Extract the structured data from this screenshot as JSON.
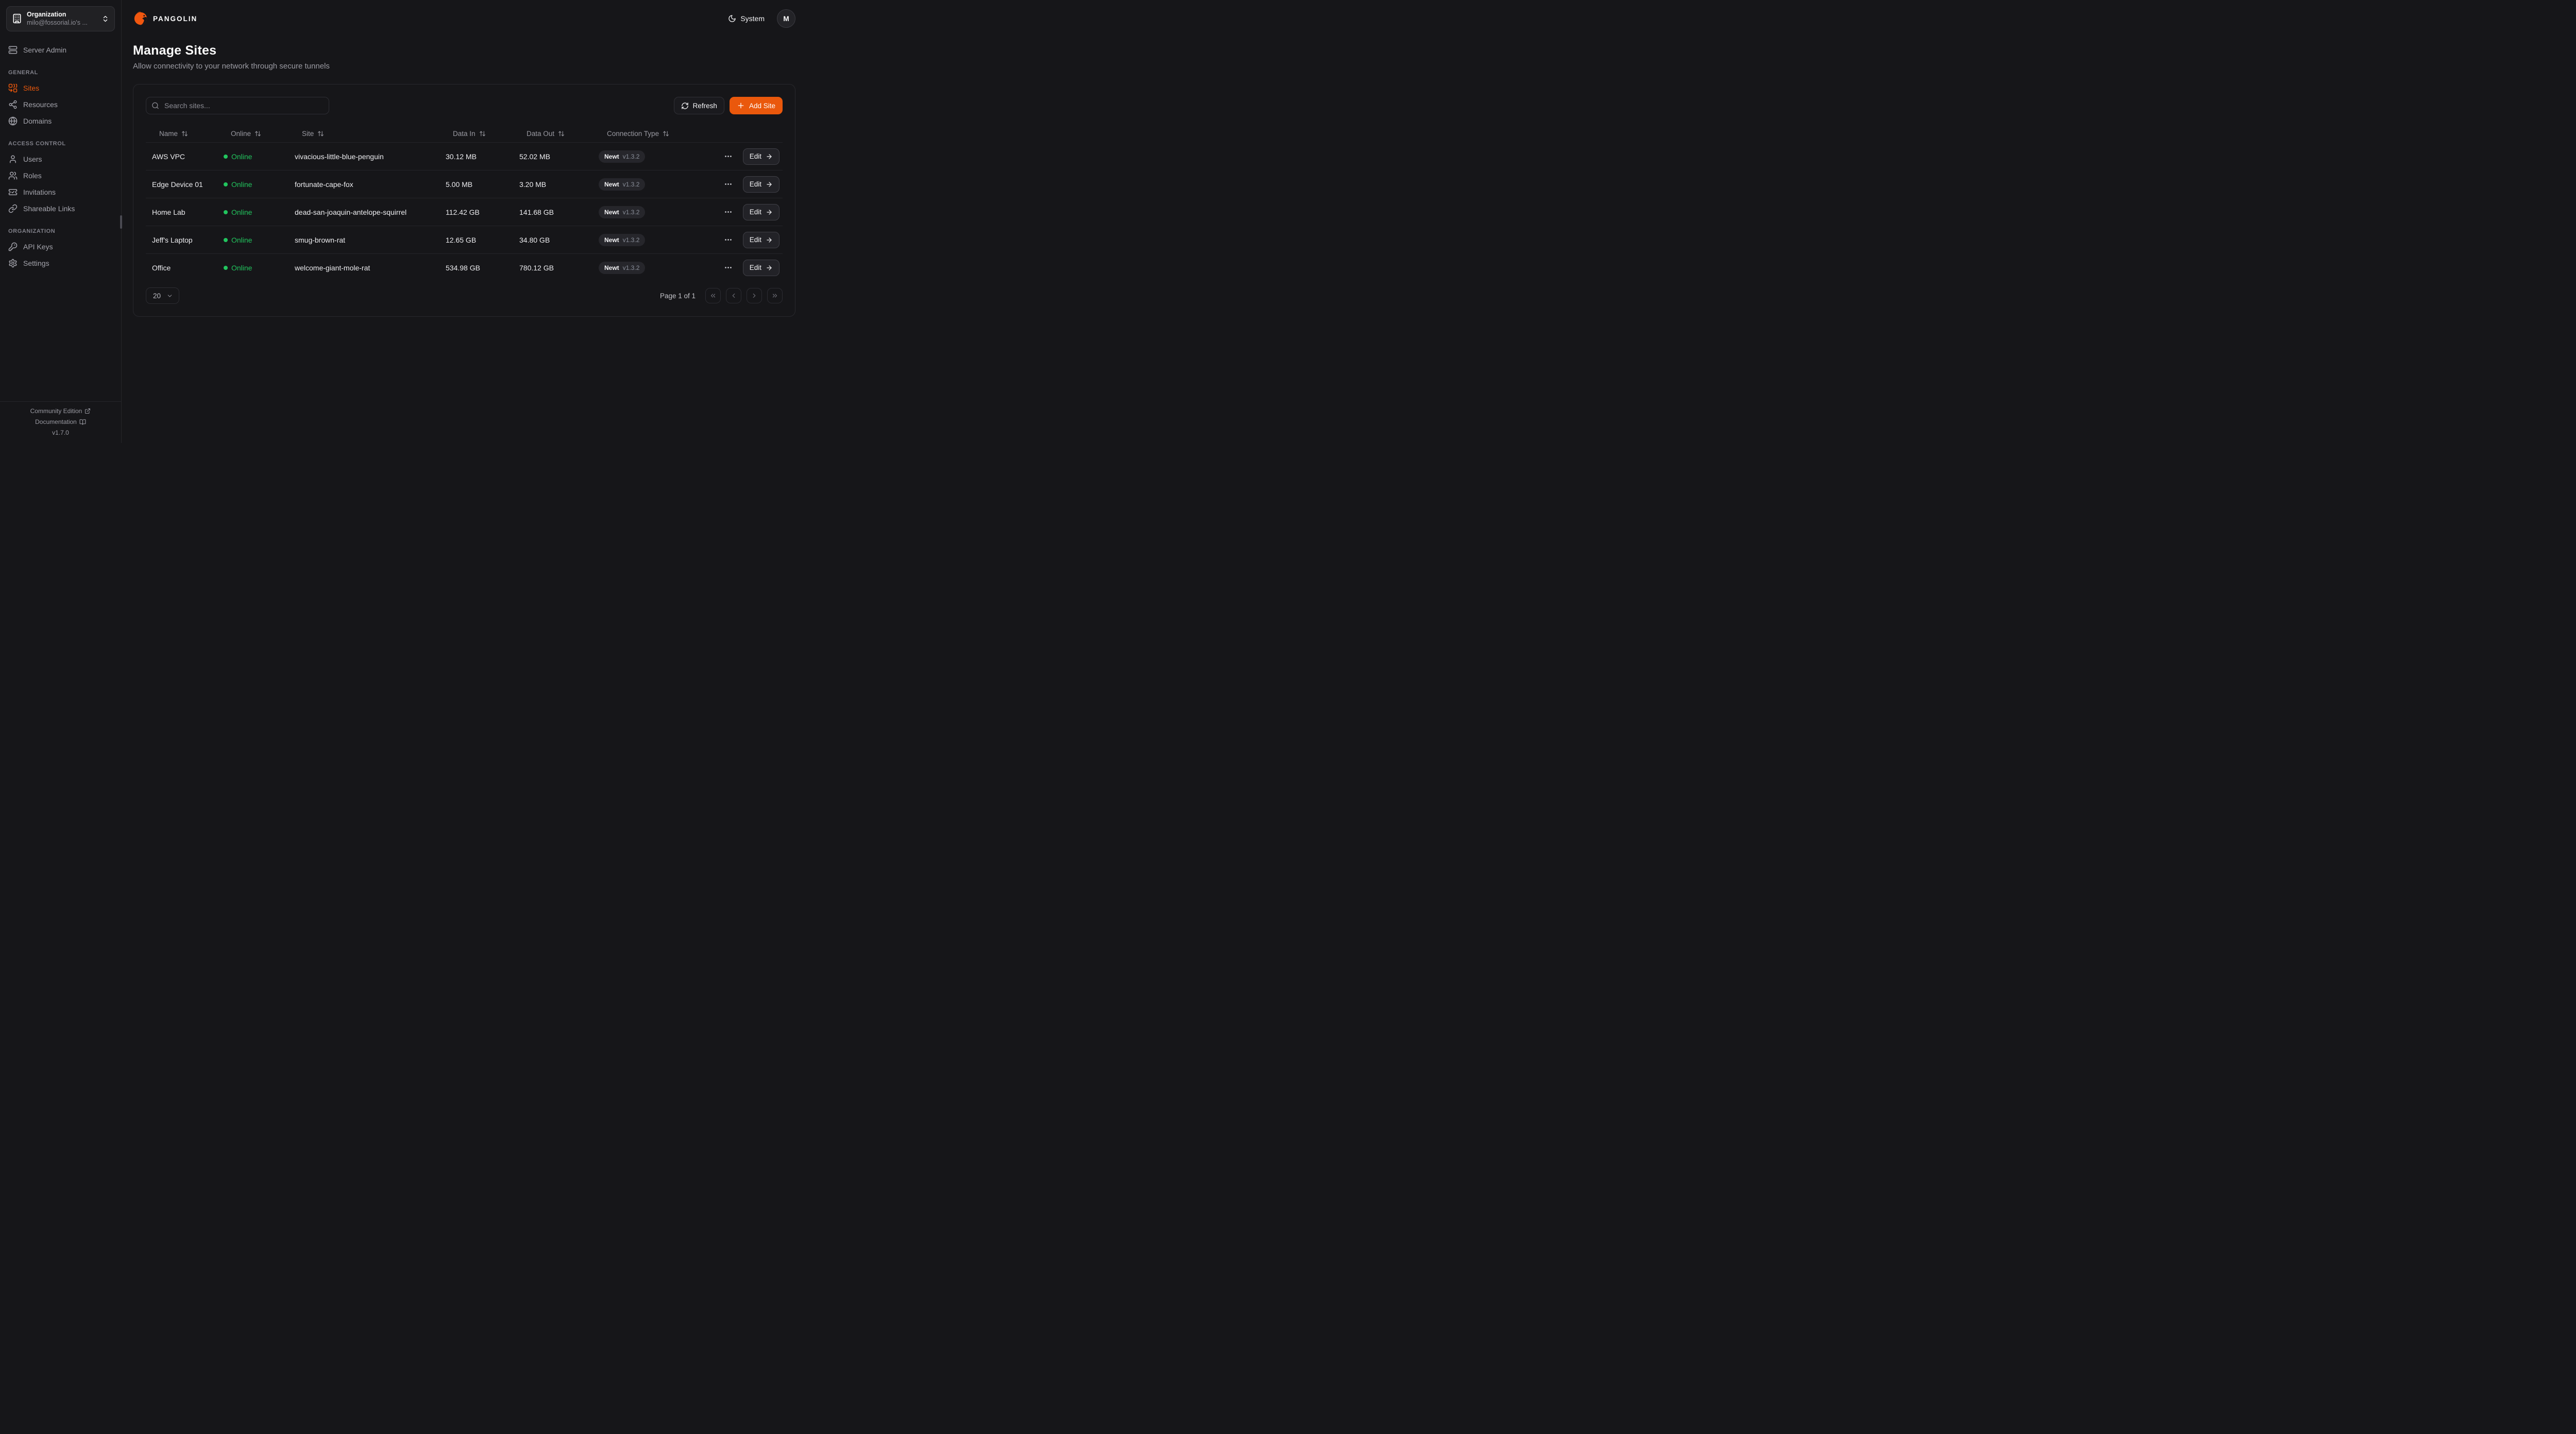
{
  "brand": {
    "name": "PANGOLIN"
  },
  "topbar": {
    "theme_label": "System",
    "avatar_initial": "M"
  },
  "org_switcher": {
    "label": "Organization",
    "value": "milo@fossorial.io's ..."
  },
  "sidebar": {
    "server_admin": {
      "label": "Server Admin",
      "icon": "server-icon"
    },
    "sections": [
      {
        "title": "GENERAL",
        "items": [
          {
            "label": "Sites",
            "icon": "sites-icon",
            "active": true
          },
          {
            "label": "Resources",
            "icon": "resources-icon",
            "active": false
          },
          {
            "label": "Domains",
            "icon": "globe-icon",
            "active": false
          }
        ]
      },
      {
        "title": "ACCESS CONTROL",
        "items": [
          {
            "label": "Users",
            "icon": "user-icon",
            "active": false
          },
          {
            "label": "Roles",
            "icon": "users-icon",
            "active": false
          },
          {
            "label": "Invitations",
            "icon": "ticket-icon",
            "active": false
          },
          {
            "label": "Shareable Links",
            "icon": "link-icon",
            "active": false
          }
        ]
      },
      {
        "title": "ORGANIZATION",
        "items": [
          {
            "label": "API Keys",
            "icon": "key-icon",
            "active": false
          },
          {
            "label": "Settings",
            "icon": "gear-icon",
            "active": false
          }
        ]
      }
    ],
    "footer": {
      "community": "Community Edition",
      "documentation": "Documentation",
      "version": "v1.7.0"
    }
  },
  "page": {
    "title": "Manage Sites",
    "subtitle": "Allow connectivity to your network through secure tunnels"
  },
  "toolbar": {
    "search_placeholder": "Search sites...",
    "refresh_label": "Refresh",
    "add_site_label": "Add Site"
  },
  "table": {
    "columns": [
      "Name",
      "Online",
      "Site",
      "Data In",
      "Data Out",
      "Connection Type"
    ],
    "edit_label": "Edit",
    "rows": [
      {
        "name": "AWS VPC",
        "status": "Online",
        "site": "vivacious-little-blue-penguin",
        "data_in": "30.12 MB",
        "data_out": "52.02 MB",
        "connection": "Newt",
        "version": "v1.3.2"
      },
      {
        "name": "Edge Device 01",
        "status": "Online",
        "site": "fortunate-cape-fox",
        "data_in": "5.00 MB",
        "data_out": "3.20 MB",
        "connection": "Newt",
        "version": "v1.3.2"
      },
      {
        "name": "Home Lab",
        "status": "Online",
        "site": "dead-san-joaquin-antelope-squirrel",
        "data_in": "112.42 GB",
        "data_out": "141.68 GB",
        "connection": "Newt",
        "version": "v1.3.2"
      },
      {
        "name": "Jeff's Laptop",
        "status": "Online",
        "site": "smug-brown-rat",
        "data_in": "12.65 GB",
        "data_out": "34.80 GB",
        "connection": "Newt",
        "version": "v1.3.2"
      },
      {
        "name": "Office",
        "status": "Online",
        "site": "welcome-giant-mole-rat",
        "data_in": "534.98 GB",
        "data_out": "780.12 GB",
        "connection": "Newt",
        "version": "v1.3.2"
      }
    ]
  },
  "pagination": {
    "page_size": "20",
    "page_info": "Page 1 of 1"
  },
  "colors": {
    "accent": "#ea580c",
    "online": "#22c55e"
  }
}
